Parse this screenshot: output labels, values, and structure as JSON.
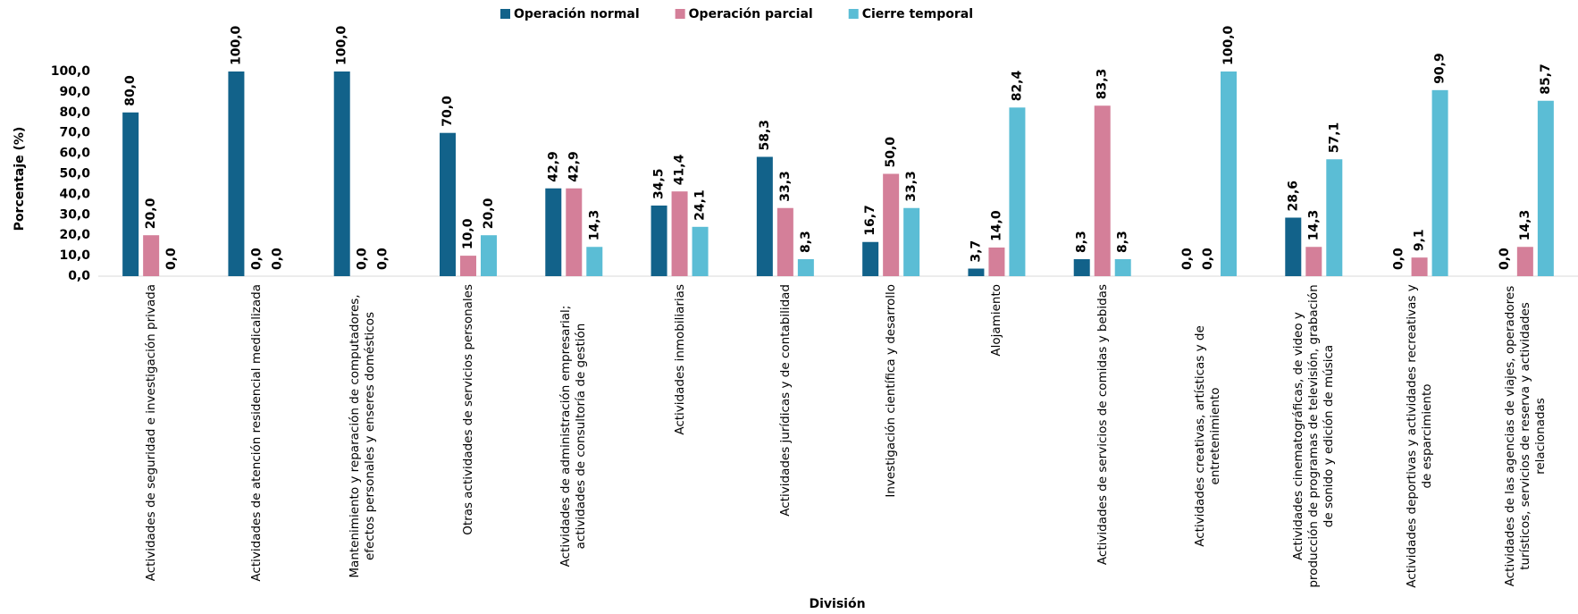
{
  "chart_data": {
    "type": "bar",
    "x_label": "División",
    "y_label": "Porcentaje (%)",
    "categories": [
      "Actividades de seguridad e investigación privada",
      "Actividades de atención residencial medicalizada",
      "Mantenimiento y reparación de computadores, efectos personales y enseres domésticos",
      "Otras actividades de servicios personales",
      "Actividades de administración empresarial; actividades de consultoría de gestión",
      "Actividades inmobiliarias",
      "Actividades jurídicas y de contabilidad",
      "Investigación científica y desarrollo",
      "Alojamiento",
      "Actividades de servicios de comidas y bebidas",
      "Actividades creativas, artísticas y de entretenimiento",
      "Actividades cinematográficas, de video y producción de programas de televisión, grabación de sonido y edición de música",
      "Actividades deportivas y actividades recreativas y de esparcimiento",
      "Actividades de las agencias de viajes, operadores turísticos, servicios de reserva y actividades relacionadas"
    ],
    "series": [
      {
        "name": "Operación normal",
        "color": "#12628a",
        "values": [
          80,
          100,
          100,
          70,
          42.9,
          34.5,
          58.3,
          16.7,
          3.7,
          8.3,
          0,
          28.6,
          0,
          0
        ],
        "value_labels": [
          "80,0",
          "100,0",
          "100,0",
          "70,0",
          "42,9",
          "34,5",
          "58,3",
          "16,7",
          "3,7",
          "8,3",
          "0,0",
          "28,6",
          "0,0",
          "0,0"
        ]
      },
      {
        "name": "Operación parcial",
        "color": "#d47f99",
        "values": [
          20,
          0,
          0,
          10,
          42.9,
          41.4,
          33.3,
          50,
          14,
          83.3,
          0,
          14.3,
          9.1,
          14.3
        ],
        "value_labels": [
          "20,0",
          "0,0",
          "0,0",
          "10,0",
          "42,9",
          "41,4",
          "33,3",
          "50,0",
          "14,0",
          "83,3",
          "0,0",
          "14,3",
          "9,1",
          "14,3"
        ]
      },
      {
        "name": "Cierre temporal",
        "color": "#5bbdd5",
        "values": [
          0,
          0,
          0,
          20,
          14.3,
          24.1,
          8.3,
          33.3,
          82.4,
          8.3,
          100,
          57.1,
          90.9,
          85.7
        ],
        "value_labels": [
          "0,0",
          "0,0",
          "0,0",
          "20,0",
          "14,3",
          "24,1",
          "8,3",
          "33,3",
          "82,4",
          "8,3",
          "100,0",
          "57,1",
          "90,9",
          "85,7"
        ]
      }
    ],
    "ylim": [
      0,
      100
    ],
    "yticks": [
      {
        "value": 0,
        "label": "0,0"
      },
      {
        "value": 10,
        "label": "10,0"
      },
      {
        "value": 20,
        "label": "20,0"
      },
      {
        "value": 30,
        "label": "30,0"
      },
      {
        "value": 40,
        "label": "40,0"
      },
      {
        "value": 50,
        "label": "50,0"
      },
      {
        "value": 60,
        "label": "60,0"
      },
      {
        "value": 70,
        "label": "70,0"
      },
      {
        "value": 80,
        "label": "80,0"
      },
      {
        "value": 90,
        "label": "90,0"
      },
      {
        "value": 100,
        "label": "100,0"
      }
    ],
    "grid": false,
    "legend": "top"
  }
}
